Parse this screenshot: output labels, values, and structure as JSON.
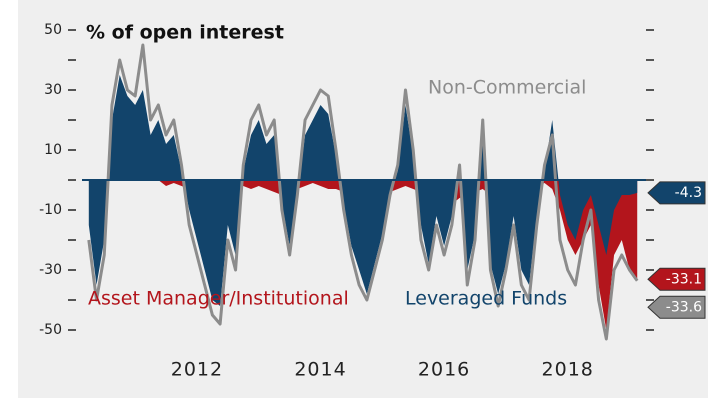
{
  "chart_data": {
    "type": "area_line",
    "title": "% of open interest",
    "xlim": [
      2010.14,
      2019.17
    ],
    "xticks": [
      2012,
      2014,
      2016,
      2018
    ],
    "ylim": [
      -58,
      55
    ],
    "yticks": [
      -50,
      -30,
      -10,
      10,
      30,
      50
    ],
    "yminor": [
      -40,
      -20,
      0,
      20,
      40
    ],
    "x": [
      2010.25,
      2010.375,
      2010.5,
      2010.625,
      2010.75,
      2010.875,
      2011,
      2011.125,
      2011.25,
      2011.375,
      2011.5,
      2011.625,
      2011.75,
      2011.875,
      2012,
      2012.125,
      2012.25,
      2012.375,
      2012.5,
      2012.625,
      2012.75,
      2012.875,
      2013,
      2013.125,
      2013.25,
      2013.375,
      2013.5,
      2013.625,
      2013.75,
      2013.875,
      2014,
      2014.125,
      2014.25,
      2014.375,
      2014.5,
      2014.625,
      2014.75,
      2014.875,
      2015,
      2015.125,
      2015.25,
      2015.375,
      2015.5,
      2015.625,
      2015.75,
      2015.875,
      2016,
      2016.125,
      2016.25,
      2016.375,
      2016.5,
      2016.625,
      2016.75,
      2016.875,
      2017,
      2017.125,
      2017.25,
      2017.375,
      2017.5,
      2017.625,
      2017.75,
      2017.875,
      2018,
      2018.125,
      2018.25,
      2018.375,
      2018.5,
      2018.625,
      2018.75,
      2018.875,
      2019,
      2019.125
    ],
    "series": [
      {
        "name": "Asset Manager/Institutional",
        "color": "#b3151c",
        "style": "area",
        "values": [
          0,
          -2,
          -3,
          5,
          10,
          8,
          5,
          3,
          2,
          0,
          -2,
          -1,
          -2,
          -3,
          -3,
          -2,
          -3,
          -4,
          -5,
          -3,
          -2,
          -3,
          -2,
          -3,
          -4,
          -5,
          -4,
          -3,
          -2,
          -1,
          -2,
          -3,
          -3,
          -4,
          -5,
          -5,
          -4,
          -3,
          -2,
          -4,
          -3,
          -2,
          -3,
          -4,
          -3,
          -2,
          -5,
          -8,
          -6,
          -5,
          -4,
          -3,
          -5,
          -6,
          -6,
          -5,
          -4,
          -3,
          -2,
          -1,
          -3,
          -10,
          -20,
          -25,
          -20,
          -15,
          -35,
          -50,
          -25,
          -20,
          -30,
          -33.1
        ]
      },
      {
        "name": "Leveraged Funds",
        "color": "#12446b",
        "style": "area",
        "values": [
          -15,
          -35,
          -20,
          20,
          35,
          28,
          25,
          30,
          15,
          20,
          12,
          15,
          3,
          -10,
          -20,
          -30,
          -40,
          -42,
          -15,
          -25,
          3,
          15,
          20,
          12,
          15,
          -8,
          -22,
          -5,
          15,
          20,
          25,
          22,
          8,
          -8,
          -22,
          -30,
          -38,
          -28,
          -18,
          -5,
          3,
          25,
          8,
          -15,
          -28,
          -12,
          -22,
          -12,
          3,
          -30,
          -18,
          15,
          -28,
          -38,
          -28,
          -12,
          -30,
          -35,
          -12,
          3,
          20,
          -5,
          -15,
          -20,
          -10,
          -5,
          -15,
          -25,
          -10,
          -5,
          -5,
          -4.3
        ]
      },
      {
        "name": "Non-Commercial",
        "color": "#8c8c8c",
        "style": "line",
        "values": [
          -20,
          -40,
          -25,
          25,
          40,
          30,
          28,
          45,
          20,
          25,
          15,
          20,
          5,
          -15,
          -25,
          -35,
          -45,
          -48,
          -20,
          -30,
          5,
          20,
          25,
          15,
          20,
          -10,
          -25,
          -5,
          20,
          25,
          30,
          28,
          10,
          -10,
          -25,
          -35,
          -40,
          -30,
          -20,
          -5,
          5,
          30,
          10,
          -20,
          -30,
          -15,
          -25,
          -15,
          5,
          -35,
          -20,
          20,
          -30,
          -42,
          -30,
          -15,
          -35,
          -40,
          -15,
          5,
          15,
          -20,
          -30,
          -35,
          -20,
          -10,
          -40,
          -53,
          -30,
          -25,
          -30,
          -33.6
        ]
      }
    ]
  }
}
